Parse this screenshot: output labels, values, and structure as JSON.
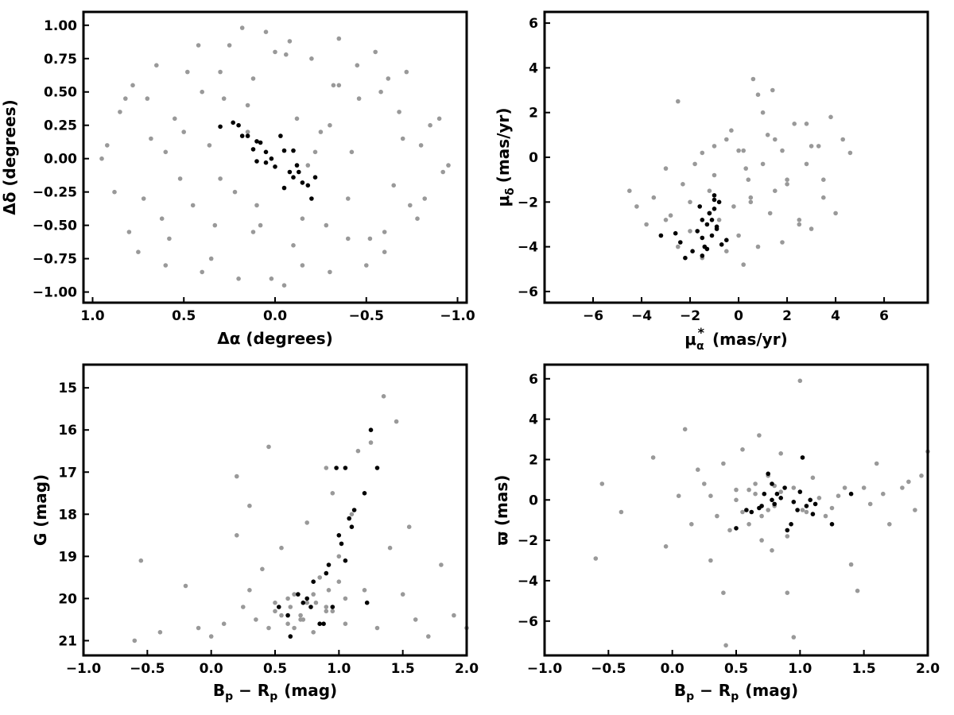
{
  "colors": {
    "background": "#cccccc",
    "member": "#000000",
    "field": "#999999",
    "axis": "#000000"
  },
  "chart_data": [
    {
      "type": "scatter",
      "panel": "sky-position",
      "xlabel": "Δα (degrees)",
      "ylabel": "Δδ (degrees)",
      "xlim": [
        1.05,
        -1.05
      ],
      "ylim": [
        -1.08,
        1.1
      ],
      "x_ticks": [
        1.0,
        0.5,
        0.0,
        -0.5,
        -1.0
      ],
      "x_tick_labels": [
        "1.0",
        "0.5",
        "0.0",
        "−0.5",
        "−1.0"
      ],
      "y_ticks": [
        1.0,
        0.75,
        0.5,
        0.25,
        0.0,
        -0.25,
        -0.5,
        -0.75,
        -1.0
      ],
      "y_tick_labels": [
        "1.00",
        "0.75",
        "0.50",
        "0.25",
        "0.00",
        "−0.25",
        "−0.50",
        "−0.75",
        "−1.00"
      ],
      "grid": false,
      "series": [
        {
          "role": "background",
          "color": "#999999",
          "x": [
            0.92,
            0.85,
            0.78,
            0.72,
            0.65,
            0.58,
            0.5,
            0.42,
            0.35,
            0.28,
            0.2,
            0.12,
            0.05,
            -0.05,
            -0.12,
            -0.2,
            -0.28,
            -0.35,
            -0.42,
            -0.5,
            -0.58,
            -0.65,
            -0.72,
            -0.78,
            -0.85,
            -0.92,
            0.88,
            0.8,
            0.7,
            0.6,
            0.45,
            0.3,
            0.15,
            -0.1,
            -0.25,
            -0.4,
            -0.55,
            -0.68,
            -0.8,
            -0.9,
            0.75,
            0.62,
            0.48,
            0.36,
            0.22,
            0.08,
            -0.06,
            -0.18,
            -0.32,
            -0.46,
            -0.6,
            -0.74,
            0.55,
            0.4,
            0.25,
            0.1,
            -0.15,
            -0.3,
            -0.45,
            -0.62,
            0.3,
            0.15,
            0.0,
            -0.15,
            -0.3,
            0.68,
            0.52,
            -0.52,
            -0.7,
            0.95,
            -0.95,
            0.82,
            -0.82,
            0.4,
            -0.4,
            0.18,
            -0.22,
            0.6,
            -0.6,
            0.02,
            0.33,
            -0.35,
            0.12,
            -0.08
          ],
          "y": [
            0.1,
            0.35,
            0.55,
            -0.3,
            0.7,
            -0.6,
            0.2,
            0.85,
            -0.75,
            0.45,
            -0.9,
            0.6,
            0.95,
            -0.95,
            0.3,
            0.75,
            -0.5,
            0.9,
            0.05,
            -0.8,
            0.5,
            -0.2,
            0.65,
            -0.45,
            0.25,
            -0.1,
            -0.25,
            -0.55,
            0.45,
            0.05,
            -0.35,
            -0.15,
            0.4,
            -0.65,
            0.2,
            -0.3,
            0.8,
            0.35,
            0.1,
            0.3,
            -0.7,
            -0.45,
            0.65,
            0.1,
            -0.25,
            -0.5,
            0.78,
            -0.05,
            0.55,
            0.45,
            -0.55,
            -0.35,
            0.3,
            -0.85,
            0.85,
            -0.35,
            -0.8,
            -0.85,
            0.7,
            0.6,
            0.65,
            0.2,
            0.8,
            -0.45,
            0.25,
            0.15,
            -0.15,
            -0.6,
            0.15,
            0.0,
            -0.05,
            0.45,
            -0.3,
            0.5,
            -0.6,
            0.98,
            0.05,
            -0.8,
            -0.7,
            -0.9,
            -0.5,
            0.55,
            -0.55,
            0.88
          ]
        },
        {
          "role": "member",
          "color": "#000000",
          "x": [
            0.3,
            0.23,
            0.2,
            0.15,
            0.12,
            0.1,
            0.08,
            0.05,
            0.02,
            0.0,
            -0.03,
            -0.05,
            -0.08,
            -0.1,
            -0.12,
            -0.15,
            -0.18,
            -0.2,
            -0.22,
            0.18,
            0.1,
            -0.1,
            0.05,
            -0.05,
            -0.13
          ],
          "y": [
            0.24,
            0.27,
            0.25,
            0.17,
            0.07,
            0.13,
            0.12,
            0.05,
            0.0,
            -0.06,
            0.17,
            0.06,
            -0.1,
            -0.14,
            -0.05,
            -0.18,
            -0.2,
            -0.3,
            -0.14,
            0.17,
            -0.02,
            0.06,
            -0.03,
            -0.22,
            -0.1
          ]
        }
      ]
    },
    {
      "type": "scatter",
      "panel": "proper-motion",
      "xlabel_main": "μ",
      "xlabel_sub": "α",
      "xlabel_sup": "*",
      "xlabel_unit": "(mas/yr)",
      "ylabel_main": "μ",
      "ylabel_sub": "δ",
      "ylabel_unit": "(mas/yr)",
      "xlim": [
        -8,
        7.8
      ],
      "ylim": [
        -6.5,
        6.5
      ],
      "x_ticks": [
        -6,
        -4,
        -2,
        0,
        2,
        4,
        6
      ],
      "x_tick_labels": [
        "−6",
        "−4",
        "−2",
        "0",
        "2",
        "4",
        "6"
      ],
      "y_ticks": [
        -6,
        -4,
        -2,
        0,
        2,
        4,
        6
      ],
      "y_tick_labels": [
        "−6",
        "−4",
        "−2",
        "0",
        "2",
        "4",
        "6"
      ],
      "grid": false,
      "series": [
        {
          "role": "background",
          "color": "#999999",
          "x": [
            -4.5,
            -4.2,
            -3.8,
            -3.5,
            -3.2,
            -3.0,
            -2.8,
            -2.5,
            -2.3,
            -2.0,
            -1.8,
            -1.5,
            -1.2,
            -1.0,
            -0.8,
            -0.5,
            -0.3,
            0.0,
            0.2,
            0.5,
            0.8,
            1.0,
            1.3,
            1.5,
            1.8,
            2.0,
            2.3,
            2.5,
            2.8,
            3.0,
            3.3,
            3.5,
            3.8,
            4.0,
            4.3,
            4.6,
            -2.5,
            -1.0,
            0.5,
            1.5,
            2.5,
            3.5,
            -0.5,
            0.3,
            1.2,
            2.0,
            -1.5,
            0.0,
            1.0,
            3.0,
            -3.0,
            -2.0,
            0.8,
            1.8,
            2.8,
            0.2,
            -0.2,
            0.6,
            1.4,
            0.4
          ],
          "y": [
            -1.5,
            -2.2,
            -3.0,
            -1.8,
            -3.5,
            -0.5,
            -2.6,
            -4.0,
            -1.2,
            -3.3,
            -0.3,
            -4.5,
            -1.5,
            0.5,
            -2.8,
            -4.2,
            1.2,
            -3.5,
            0.3,
            -1.8,
            -4.0,
            2.0,
            -2.5,
            0.8,
            -3.8,
            -1.0,
            1.5,
            -2.8,
            -0.3,
            -3.2,
            0.5,
            -1.8,
            1.8,
            -2.5,
            0.8,
            0.2,
            2.5,
            -0.8,
            -2.0,
            -1.5,
            -3.0,
            -1.0,
            0.8,
            -0.5,
            1.0,
            -1.2,
            0.2,
            0.3,
            -0.3,
            0.5,
            -2.8,
            -2.0,
            2.8,
            0.3,
            1.5,
            -4.8,
            -2.2,
            3.5,
            3.0,
            -1.0
          ]
        },
        {
          "role": "member",
          "color": "#000000",
          "x": [
            -3.2,
            -2.6,
            -2.4,
            -2.2,
            -1.9,
            -1.7,
            -1.6,
            -1.5,
            -1.5,
            -1.4,
            -1.3,
            -1.2,
            -1.1,
            -1.1,
            -1.0,
            -1.0,
            -0.9,
            -0.8,
            -0.7,
            -1.5,
            -1.2,
            -0.9,
            -0.5,
            -1.3,
            -1.0
          ],
          "y": [
            -3.5,
            -3.4,
            -3.8,
            -4.5,
            -4.2,
            -3.3,
            -2.2,
            -3.6,
            -4.4,
            -4.0,
            -3.0,
            -2.5,
            -2.8,
            -3.5,
            -2.3,
            -1.7,
            -3.1,
            -2.0,
            -3.9,
            -2.8,
            -2.5,
            -3.2,
            -3.7,
            -4.1,
            -1.9
          ]
        }
      ]
    },
    {
      "type": "scatter",
      "panel": "color-magnitude",
      "xlabel_main": "B",
      "xlabel_sub1": "p",
      "xlabel_mid": " − R",
      "xlabel_sub2": "p",
      "xlabel_unit": "(mag)",
      "ylabel": "G (mag)",
      "xlim": [
        -1.0,
        2.0
      ],
      "ylim": [
        21.35,
        14.45
      ],
      "x_ticks": [
        -1.0,
        -0.5,
        0.0,
        0.5,
        1.0,
        1.5,
        2.0
      ],
      "x_tick_labels": [
        "−1.0",
        "−0.5",
        "0.0",
        "0.5",
        "1.0",
        "1.5",
        "2.0"
      ],
      "y_ticks": [
        21,
        20,
        19,
        18,
        17,
        16,
        15
      ],
      "y_tick_labels": [
        "21",
        "20",
        "19",
        "18",
        "17",
        "16",
        "15"
      ],
      "grid": false,
      "series": [
        {
          "role": "background",
          "color": "#999999",
          "x": [
            -0.6,
            -0.55,
            -0.4,
            -0.2,
            -0.1,
            0.0,
            0.1,
            0.2,
            0.25,
            0.3,
            0.35,
            0.4,
            0.45,
            0.5,
            0.55,
            0.6,
            0.65,
            0.7,
            0.75,
            0.8,
            0.85,
            0.9,
            0.95,
            1.0,
            1.05,
            1.1,
            1.15,
            1.2,
            1.3,
            1.4,
            1.5,
            1.6,
            1.7,
            1.8,
            1.9,
            2.0,
            0.5,
            0.6,
            0.7,
            0.8,
            0.9,
            1.0,
            0.55,
            0.65,
            0.75,
            0.85,
            0.95,
            1.05,
            0.62,
            0.72,
            0.82,
            0.92,
            0.2,
            0.3,
            1.25,
            1.35,
            1.45,
            1.55,
            0.45,
            0.9
          ],
          "y": [
            21.0,
            19.1,
            20.8,
            19.7,
            20.7,
            20.9,
            20.6,
            18.5,
            20.2,
            19.8,
            20.5,
            19.3,
            20.7,
            20.1,
            18.8,
            20.6,
            19.9,
            20.4,
            18.2,
            20.8,
            19.5,
            20.3,
            17.5,
            19.0,
            20.6,
            18.0,
            16.5,
            19.8,
            20.7,
            18.8,
            19.9,
            20.5,
            20.9,
            19.2,
            20.4,
            20.7,
            20.3,
            20.0,
            20.5,
            19.9,
            20.2,
            19.6,
            20.4,
            20.7,
            20.1,
            20.6,
            20.3,
            20.0,
            20.2,
            20.5,
            20.1,
            19.8,
            17.1,
            17.8,
            16.3,
            15.2,
            15.8,
            18.3,
            16.4,
            16.9
          ]
        },
        {
          "role": "member",
          "color": "#000000",
          "x": [
            0.53,
            0.6,
            0.62,
            0.68,
            0.72,
            0.75,
            0.78,
            0.8,
            0.85,
            0.9,
            0.92,
            0.95,
            1.0,
            1.02,
            1.05,
            1.08,
            1.1,
            1.12,
            1.2,
            1.22,
            1.25,
            1.3,
            1.05,
            0.98,
            0.88
          ],
          "y": [
            20.2,
            20.4,
            20.9,
            19.9,
            20.1,
            20.0,
            20.2,
            19.6,
            20.6,
            19.4,
            19.2,
            20.2,
            18.5,
            18.7,
            19.1,
            18.1,
            18.3,
            17.9,
            17.5,
            20.1,
            16.0,
            16.9,
            16.9,
            16.9,
            20.6
          ]
        }
      ]
    },
    {
      "type": "scatter",
      "panel": "parallax",
      "xlabel_main": "B",
      "xlabel_sub1": "p",
      "xlabel_mid": " − R",
      "xlabel_sub2": "p",
      "xlabel_unit": "(mag)",
      "ylabel": "ϖ (mas)",
      "xlim": [
        -1.0,
        2.0
      ],
      "ylim": [
        -7.7,
        6.7
      ],
      "x_ticks": [
        -1.0,
        -0.5,
        0.0,
        0.5,
        1.0,
        1.5,
        2.0
      ],
      "x_tick_labels": [
        "−1.0",
        "−0.5",
        "0.0",
        "0.5",
        "1.0",
        "1.5",
        "2.0"
      ],
      "y_ticks": [
        6,
        4,
        2,
        0,
        -2,
        -4,
        -6
      ],
      "y_tick_labels": [
        "6",
        "4",
        "2",
        "0",
        "−2",
        "−4",
        "−6"
      ],
      "grid": false,
      "series": [
        {
          "role": "background",
          "color": "#999999",
          "x": [
            -0.6,
            -0.55,
            -0.4,
            -0.15,
            -0.05,
            0.1,
            0.2,
            0.3,
            0.35,
            0.4,
            0.45,
            0.5,
            0.55,
            0.6,
            0.65,
            0.7,
            0.75,
            0.8,
            0.85,
            0.9,
            0.95,
            1.0,
            1.05,
            1.1,
            1.2,
            1.3,
            1.4,
            1.5,
            1.6,
            1.7,
            1.8,
            1.9,
            2.0,
            0.42,
            0.4,
            0.9,
            0.95,
            1.02,
            1.45,
            0.3,
            0.25,
            0.55,
            0.65,
            0.75,
            0.85,
            0.5,
            0.6,
            0.7,
            0.8,
            1.15,
            1.25,
            1.35,
            1.55,
            1.65,
            0.15,
            0.05,
            0.68,
            0.78,
            1.85,
            1.95
          ],
          "y": [
            -2.9,
            0.8,
            -0.6,
            2.1,
            -2.3,
            3.5,
            1.5,
            0.2,
            -0.8,
            1.8,
            -1.5,
            0.5,
            2.5,
            -1.2,
            0.8,
            -2.0,
            1.2,
            -0.3,
            2.3,
            -1.8,
            0.6,
            5.9,
            -0.6,
            1.1,
            -0.8,
            0.2,
            -3.2,
            0.6,
            1.8,
            -1.2,
            0.6,
            -0.5,
            2.4,
            -7.2,
            -4.6,
            -4.6,
            -6.8,
            -0.5,
            -4.5,
            -3.0,
            0.8,
            -0.6,
            0.3,
            -0.5,
            0.4,
            0.0,
            0.5,
            -0.8,
            0.7,
            0.1,
            -0.4,
            0.6,
            -0.2,
            0.3,
            -1.2,
            0.2,
            3.2,
            -2.5,
            0.9,
            1.2
          ]
        },
        {
          "role": "member",
          "color": "#000000",
          "x": [
            0.5,
            0.58,
            0.62,
            0.68,
            0.72,
            0.75,
            0.78,
            0.8,
            0.85,
            0.9,
            0.93,
            0.98,
            1.02,
            1.05,
            1.08,
            1.1,
            1.12,
            1.25,
            1.4,
            0.82,
            0.88,
            0.95,
            1.0,
            0.7,
            0.78
          ],
          "y": [
            -1.4,
            -0.5,
            -0.6,
            -0.4,
            0.3,
            1.3,
            0.8,
            -0.2,
            0.1,
            -1.5,
            -1.2,
            -0.5,
            2.1,
            -0.3,
            0.0,
            -0.7,
            -0.2,
            -1.2,
            0.3,
            0.3,
            0.6,
            -0.1,
            0.4,
            -0.3,
            0.0
          ]
        }
      ]
    }
  ]
}
